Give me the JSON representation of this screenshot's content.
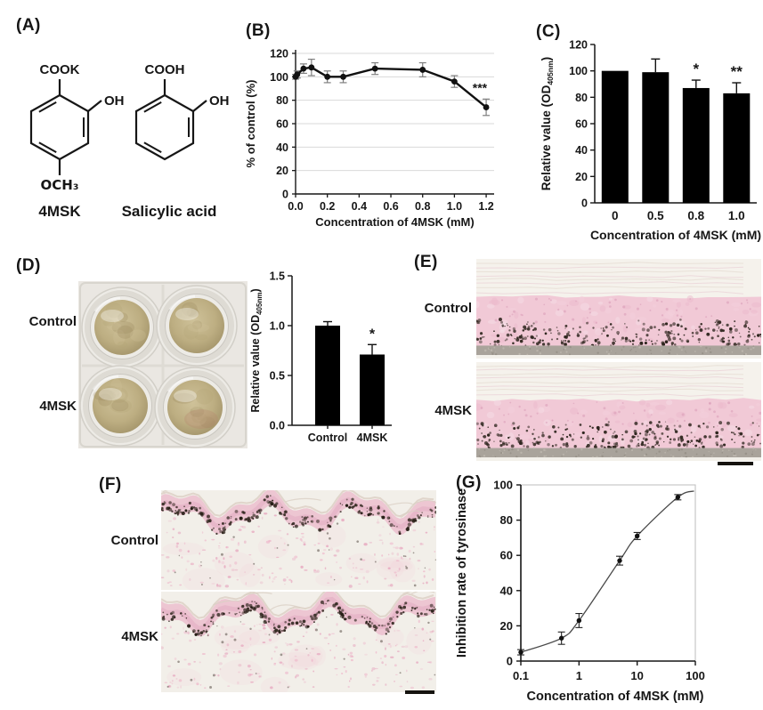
{
  "figure": {
    "panel_labels": {
      "A": "(A)",
      "B": "(B)",
      "C": "(C)",
      "D": "(D)",
      "E": "(E)",
      "F": "(F)",
      "G": "(G)"
    }
  },
  "panelA": {
    "molecules": [
      {
        "name": "4MSK",
        "sub_top": "COOK",
        "sub_right": "OH",
        "sub_bottom": "OCH₃"
      },
      {
        "name": "Salicylic acid",
        "sub_top": "COOH",
        "sub_right": "OH"
      }
    ]
  },
  "panelD": {
    "row_labels": [
      "Control",
      "4MSK"
    ]
  },
  "panelE": {
    "row_labels": [
      "Control",
      "4MSK"
    ]
  },
  "panelF": {
    "row_labels": [
      "Control",
      "4MSK"
    ]
  },
  "colors": {
    "bar": "#000000",
    "grid": "#d9d9d9",
    "error_gray": "#7f7f7f",
    "axis": "#161616",
    "curve": "#4a4a4a",
    "frame_gray": "#bcbcbc",
    "histology_pink": "#f1c9d6",
    "membrane_gray": "#a9a39b",
    "melanin": "#2c241c",
    "tissue_olive": "#b5a77d",
    "photo_bg": "#eae7e2"
  },
  "chart_data": [
    {
      "id": "chartB",
      "panel": "B",
      "type": "line",
      "xlabel": "Concentration of 4MSK (mM)",
      "ylabel": "% of control (%)",
      "xlim": [
        0,
        1.25
      ],
      "ylim": [
        0,
        120
      ],
      "grid": true,
      "xticks": [
        0,
        0.2,
        0.4,
        0.6,
        0.8,
        1.0,
        1.2
      ],
      "xtick_labels": [
        "0.0",
        "0.2",
        "0.4",
        "0.6",
        "0.8",
        "1.0",
        "1.2"
      ],
      "yticks": [
        0,
        20,
        40,
        60,
        80,
        100,
        120
      ],
      "ytick_labels": [
        "0",
        "20",
        "40",
        "60",
        "80",
        "100",
        "120"
      ],
      "x": [
        0,
        0.01,
        0.05,
        0.1,
        0.2,
        0.3,
        0.5,
        0.8,
        1.0,
        1.2
      ],
      "y": [
        100,
        102,
        107,
        108,
        100,
        100,
        107,
        106,
        96,
        74
      ],
      "yerr": [
        2,
        3,
        4,
        7,
        5,
        5,
        5,
        6,
        5,
        7
      ],
      "annotations": [
        {
          "text": "***",
          "x": 1.16,
          "y": 87
        }
      ]
    },
    {
      "id": "chartC",
      "panel": "C",
      "type": "bar",
      "xlabel": "Concentration of 4MSK (mM)",
      "ylabel_parts": {
        "pre": "Relative value (OD",
        "sub": "405nm",
        "post": ")"
      },
      "categories": [
        "0",
        "0.5",
        "0.8",
        "1.0"
      ],
      "values": [
        100,
        99,
        87,
        83
      ],
      "yerr": [
        0,
        10,
        6,
        8
      ],
      "bar_annotations": [
        "",
        "",
        "*",
        "**"
      ],
      "ylim": [
        0,
        120
      ],
      "yticks": [
        0,
        20,
        40,
        60,
        80,
        100,
        120
      ],
      "ytick_labels": [
        "0",
        "20",
        "40",
        "60",
        "80",
        "100",
        "120"
      ]
    },
    {
      "id": "chartD",
      "panel": "D",
      "type": "bar",
      "xlabel": "",
      "ylabel_parts": {
        "pre": "Relative value (OD",
        "sub": "405nm",
        "post": ")"
      },
      "categories": [
        "Control",
        "4MSK"
      ],
      "values": [
        1.0,
        0.71
      ],
      "yerr": [
        0.04,
        0.1
      ],
      "bar_annotations": [
        "",
        "*"
      ],
      "ylim": [
        0,
        1.5
      ],
      "yticks": [
        0,
        0.5,
        1.0,
        1.5
      ],
      "ytick_labels": [
        "0.0",
        "0.5",
        "1.0",
        "1.5"
      ]
    },
    {
      "id": "chartG",
      "panel": "G",
      "type": "scatter",
      "xscale": "log",
      "xlabel": "Concentration of 4MSK (mM)",
      "ylabel": "Inhibition rate of tyrosinase",
      "xlim": [
        0.1,
        100
      ],
      "ylim": [
        0,
        100
      ],
      "xticks": [
        0.1,
        1,
        10,
        100
      ],
      "xtick_labels": [
        "0.1",
        "1",
        "10",
        "100"
      ],
      "yticks": [
        0,
        20,
        40,
        60,
        80,
        100
      ],
      "ytick_labels": [
        "0",
        "20",
        "40",
        "60",
        "80",
        "100"
      ],
      "x": [
        0.1,
        0.5,
        1,
        5,
        10,
        50
      ],
      "y": [
        5,
        13,
        23,
        57,
        71,
        93
      ],
      "yerr": [
        1.5,
        3.5,
        4,
        2.5,
        2,
        1.5
      ],
      "curve_end": {
        "x": 95,
        "y": 96.5
      }
    }
  ]
}
